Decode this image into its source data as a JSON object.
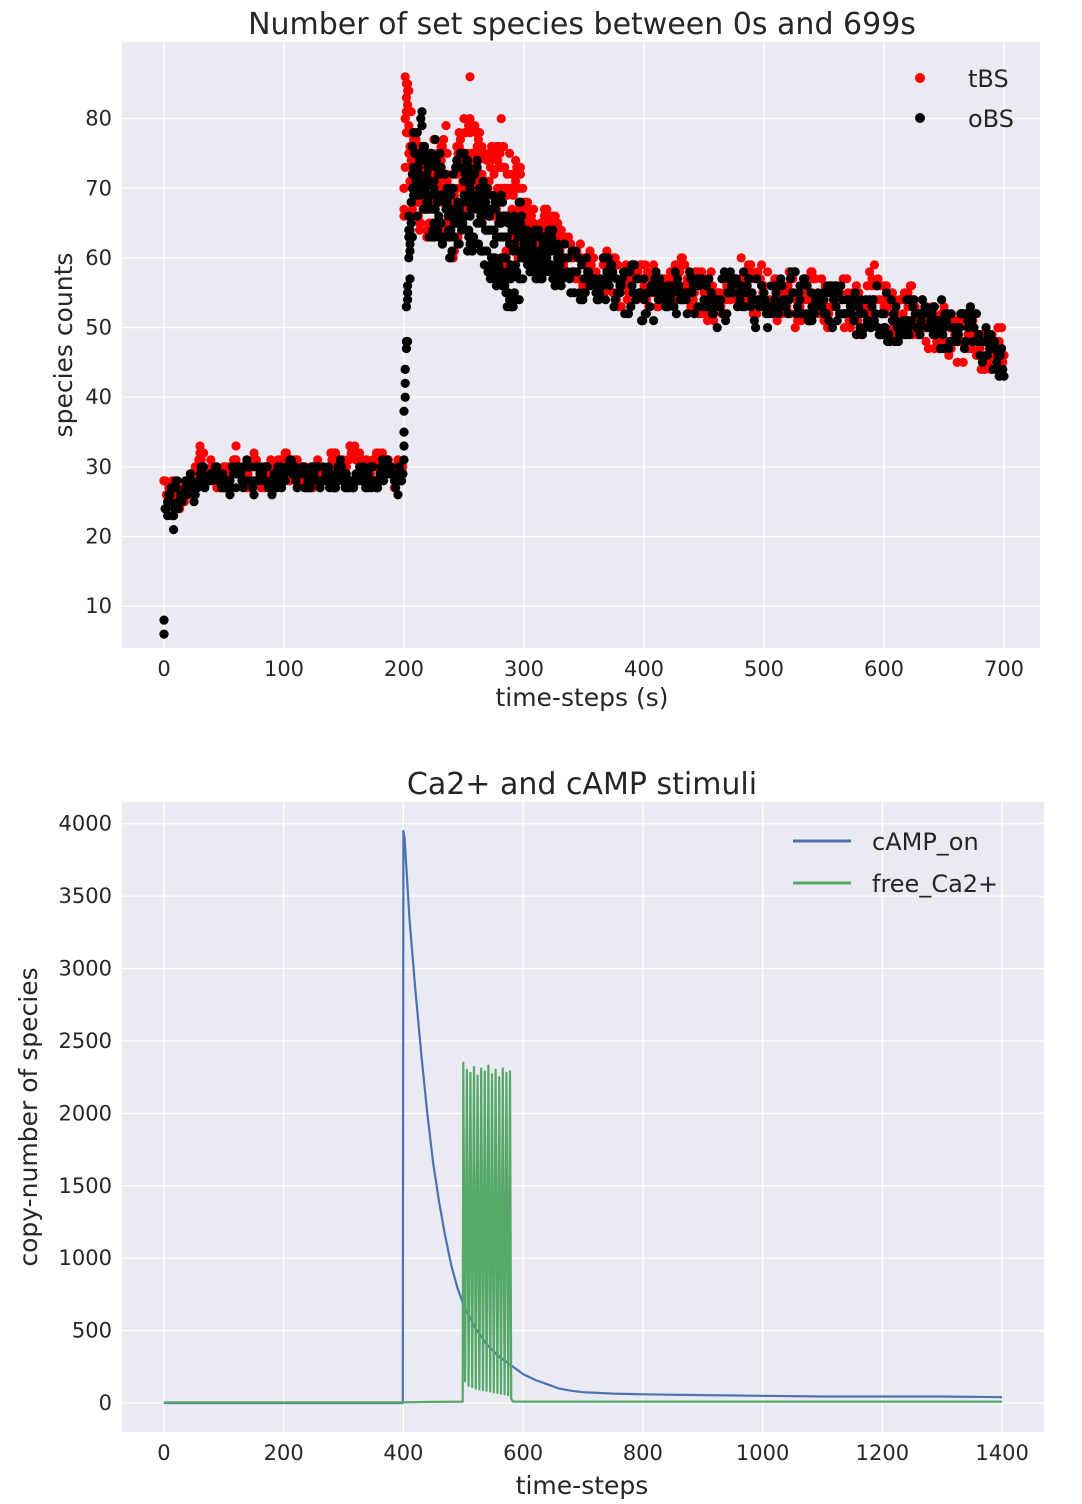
{
  "colors": {
    "axes_bg": "#EAEAF2",
    "grid": "#FFFFFF",
    "tBS": "#FF0000",
    "oBS": "#000000",
    "cAMP_on": "#4C72B0",
    "free_Ca2": "#55A868",
    "text": "#262626"
  },
  "chart_data": [
    {
      "type": "scatter",
      "title": "Number of set species between 0s and 699s",
      "xlabel": "time-steps (s)",
      "ylabel": "species counts",
      "xlim": [
        -35,
        730
      ],
      "ylim": [
        4,
        91
      ],
      "xticks": [
        0,
        100,
        200,
        300,
        400,
        500,
        600,
        700
      ],
      "yticks": [
        10,
        20,
        30,
        40,
        50,
        60,
        70,
        80
      ],
      "xtick_labels": [
        "0",
        "100",
        "200",
        "300",
        "400",
        "500",
        "600",
        "700"
      ],
      "ytick_labels": [
        "10",
        "20",
        "30",
        "40",
        "50",
        "60",
        "70",
        "80"
      ],
      "grid": true,
      "legend": "top-right",
      "series": [
        {
          "name": "tBS",
          "color": "#FF0000",
          "x": [
            0,
            5,
            10,
            15,
            20,
            25,
            30,
            35,
            40,
            45,
            50,
            55,
            60,
            65,
            70,
            75,
            80,
            85,
            90,
            95,
            100,
            105,
            110,
            115,
            120,
            125,
            130,
            135,
            140,
            145,
            150,
            155,
            160,
            165,
            170,
            175,
            180,
            185,
            190,
            195,
            199,
            200,
            201,
            202,
            203,
            204,
            205,
            206,
            207,
            208,
            210,
            212,
            215,
            218,
            220,
            225,
            230,
            235,
            240,
            245,
            250,
            255,
            260,
            265,
            270,
            275,
            280,
            285,
            290,
            295,
            300,
            310,
            320,
            330,
            340,
            350,
            360,
            370,
            380,
            390,
            400,
            410,
            420,
            430,
            440,
            450,
            460,
            470,
            480,
            490,
            500,
            510,
            520,
            530,
            540,
            550,
            560,
            570,
            580,
            590,
            600,
            610,
            620,
            630,
            640,
            650,
            660,
            670,
            680,
            690,
            695,
            700
          ],
          "y": [
            28,
            27,
            25,
            26,
            27,
            28,
            32,
            29,
            30,
            28,
            29,
            30,
            31,
            29,
            28,
            30,
            29,
            28,
            30,
            29,
            31,
            29,
            30,
            30,
            28,
            29,
            30,
            29,
            31,
            30,
            30,
            33,
            31,
            30,
            29,
            30,
            31,
            30,
            29,
            29,
            30,
            70,
            80,
            85,
            82,
            78,
            76,
            75,
            72,
            78,
            74,
            70,
            72,
            69,
            68,
            71,
            70,
            72,
            66,
            70,
            74,
            80,
            73,
            72,
            71,
            69,
            75,
            66,
            70,
            67,
            65,
            63,
            64,
            61,
            60,
            59,
            58,
            58,
            56,
            57,
            56,
            56,
            55,
            58,
            55,
            55,
            54,
            56,
            57,
            55,
            56,
            54,
            55,
            53,
            55,
            54,
            53,
            54,
            52,
            56,
            53,
            52,
            53,
            51,
            50,
            50,
            48,
            49,
            47,
            46,
            48,
            46
          ],
          "x_dense": [
            200,
            700
          ],
          "note": ""
        },
        {
          "name": "oBS",
          "color": "#000000",
          "x": [
            0,
            1,
            3,
            5,
            8,
            10,
            12,
            15,
            18,
            20,
            25,
            30,
            35,
            40,
            45,
            50,
            55,
            60,
            65,
            70,
            75,
            80,
            85,
            90,
            95,
            100,
            105,
            110,
            115,
            120,
            125,
            130,
            135,
            140,
            145,
            150,
            155,
            160,
            165,
            170,
            175,
            180,
            185,
            190,
            195,
            199,
            200,
            201,
            202,
            203,
            204,
            205,
            206,
            207,
            208,
            210,
            212,
            215,
            218,
            220,
            225,
            230,
            235,
            240,
            245,
            250,
            255,
            260,
            265,
            270,
            275,
            280,
            285,
            290,
            295,
            300,
            310,
            320,
            330,
            340,
            350,
            360,
            370,
            380,
            390,
            400,
            410,
            420,
            430,
            440,
            450,
            460,
            470,
            480,
            490,
            500,
            510,
            520,
            530,
            540,
            550,
            560,
            570,
            580,
            590,
            600,
            610,
            620,
            630,
            640,
            650,
            660,
            670,
            680,
            690,
            695,
            700
          ],
          "y": [
            8,
            24,
            25,
            26,
            23,
            27,
            25,
            26,
            27,
            28,
            27,
            29,
            28,
            28,
            29,
            27,
            28,
            29,
            28,
            30,
            28,
            29,
            28,
            27,
            29,
            28,
            30,
            28,
            29,
            28,
            29,
            28,
            29,
            28,
            30,
            29,
            28,
            29,
            28,
            29,
            28,
            29,
            30,
            29,
            28,
            29,
            35,
            42,
            48,
            55,
            60,
            64,
            68,
            70,
            72,
            71,
            72,
            74,
            70,
            68,
            70,
            69,
            67,
            66,
            68,
            71,
            66,
            67,
            65,
            64,
            62,
            63,
            60,
            58,
            61,
            62,
            60,
            61,
            59,
            58,
            57,
            56,
            57,
            55,
            56,
            54,
            55,
            56,
            54,
            55,
            54,
            53,
            55,
            56,
            54,
            53,
            55,
            54,
            56,
            53,
            54,
            53,
            54,
            52,
            53,
            52,
            51,
            50,
            52,
            51,
            50,
            49,
            50,
            48,
            47,
            46,
            43
          ]
        }
      ]
    },
    {
      "type": "line",
      "title": "Ca2+ and cAMP stimuli",
      "xlabel": "time-steps",
      "ylabel": "copy-number of species",
      "xlim": [
        -70,
        1470
      ],
      "ylim": [
        -200,
        4150
      ],
      "xticks": [
        0,
        200,
        400,
        600,
        800,
        1000,
        1200,
        1400
      ],
      "yticks": [
        0,
        500,
        1000,
        1500,
        2000,
        2500,
        3000,
        3500,
        4000
      ],
      "xtick_labels": [
        "0",
        "200",
        "400",
        "600",
        "800",
        "1000",
        "1200",
        "1400"
      ],
      "ytick_labels": [
        "0",
        "500",
        "1000",
        "1500",
        "2000",
        "2500",
        "3000",
        "3500",
        "4000"
      ],
      "grid": true,
      "legend": "top-right",
      "series": [
        {
          "name": "cAMP_on",
          "color": "#4C72B0",
          "x": [
            0,
            100,
            200,
            300,
            399,
            400,
            402,
            410,
            420,
            430,
            440,
            450,
            460,
            470,
            480,
            490,
            500,
            520,
            540,
            560,
            580,
            600,
            620,
            640,
            660,
            680,
            700,
            750,
            800,
            900,
            1000,
            1100,
            1200,
            1300,
            1400
          ],
          "y": [
            0,
            0,
            0,
            0,
            0,
            3950,
            3900,
            3350,
            2850,
            2400,
            2000,
            1650,
            1380,
            1150,
            950,
            800,
            680,
            520,
            400,
            320,
            260,
            200,
            160,
            130,
            100,
            85,
            75,
            65,
            60,
            55,
            50,
            45,
            45,
            45,
            40
          ]
        },
        {
          "name": "free_Ca2+",
          "color": "#55A868",
          "x": [
            0,
            100,
            200,
            300,
            400,
            450,
            499,
            500,
            503,
            506,
            509,
            512,
            515,
            518,
            521,
            524,
            527,
            530,
            533,
            536,
            539,
            542,
            545,
            548,
            551,
            554,
            557,
            560,
            563,
            566,
            569,
            572,
            575,
            578,
            580,
            583,
            600,
            700,
            800,
            900,
            1000,
            1100,
            1200,
            1300,
            1400
          ],
          "y": [
            5,
            5,
            5,
            5,
            5,
            8,
            10,
            2350,
            150,
            2300,
            120,
            2280,
            110,
            2320,
            100,
            2260,
            95,
            2310,
            90,
            2290,
            85,
            2330,
            80,
            2270,
            75,
            2300,
            70,
            2250,
            65,
            2310,
            60,
            2280,
            55,
            2290,
            30,
            10,
            10,
            10,
            10,
            10,
            10,
            10,
            10,
            10,
            10
          ]
        }
      ]
    }
  ]
}
